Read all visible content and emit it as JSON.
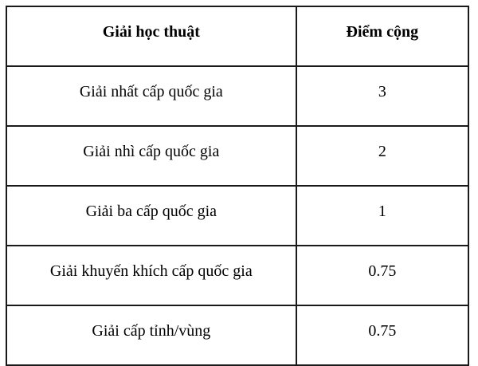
{
  "table": {
    "headers": [
      "Giải học thuật",
      "Điểm cộng"
    ],
    "rows": [
      {
        "award": "Giải nhất cấp quốc gia",
        "points": "3"
      },
      {
        "award": "Giải nhì cấp quốc gia",
        "points": "2"
      },
      {
        "award": "Giải ba cấp quốc gia",
        "points": "1"
      },
      {
        "award": "Giải khuyến khích cấp quốc gia",
        "points": "0.75"
      },
      {
        "award": "Giải cấp tỉnh/vùng",
        "points": "0.75"
      }
    ]
  }
}
